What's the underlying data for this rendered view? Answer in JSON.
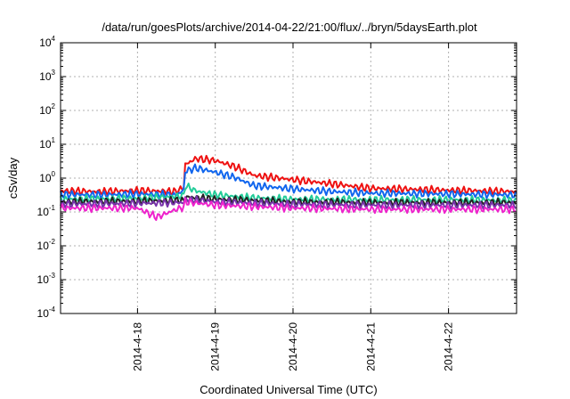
{
  "chart_data": {
    "type": "line",
    "title": "/data/run/goesPlots/archive/2014-04-22/21:00/flux/../bryn/5daysEarth.plot",
    "xlabel": "Coordinated Universal Time (UTC)",
    "ylabel": "cSv/day",
    "yscale": "log",
    "ylim": [
      0.0001,
      10000
    ],
    "xlim": [
      "2014-04-17 00:15",
      "2014-04-22 21:00"
    ],
    "grid": true,
    "legend": "none",
    "x_ticks": [
      {
        "label": "2014-4-18",
        "value": "2014-04-18"
      },
      {
        "label": "2014-4-19",
        "value": "2014-04-19"
      },
      {
        "label": "2014-4-20",
        "value": "2014-04-20"
      },
      {
        "label": "2014-4-21",
        "value": "2014-04-21"
      },
      {
        "label": "2014-4-22",
        "value": "2014-04-22"
      }
    ],
    "y_ticks": [
      {
        "base": "10",
        "exp": "-4",
        "value": 0.0001
      },
      {
        "base": "10",
        "exp": "-3",
        "value": 0.001
      },
      {
        "base": "10",
        "exp": "-2",
        "value": 0.01
      },
      {
        "base": "10",
        "exp": "-1",
        "value": 0.1
      },
      {
        "base": "10",
        "exp": "0",
        "value": 1
      },
      {
        "base": "10",
        "exp": "1",
        "value": 10
      },
      {
        "base": "10",
        "exp": "2",
        "value": 100
      },
      {
        "base": "10",
        "exp": "3",
        "value": 1000
      },
      {
        "base": "10",
        "exp": "4",
        "value": 10000
      }
    ],
    "series": [
      {
        "color": "#ee1111",
        "x": [
          "2014-04-17 00:15",
          "2014-04-17 12:00",
          "2014-04-18 00:00",
          "2014-04-18 12:00",
          "2014-04-18 14:30",
          "2014-04-18 14:45",
          "2014-04-18 18:00",
          "2014-04-19 00:00",
          "2014-04-19 06:00",
          "2014-04-19 12:00",
          "2014-04-20 00:00",
          "2014-04-20 12:00",
          "2014-04-21 00:00",
          "2014-04-21 12:00",
          "2014-04-22 00:00",
          "2014-04-22 21:00"
        ],
        "y": [
          0.42,
          0.4,
          0.43,
          0.4,
          0.55,
          2.5,
          3.8,
          3.3,
          2.2,
          1.2,
          0.9,
          0.68,
          0.5,
          0.47,
          0.44,
          0.4
        ]
      },
      {
        "color": "#1166ee",
        "x": [
          "2014-04-17 00:15",
          "2014-04-17 12:00",
          "2014-04-18 00:00",
          "2014-04-18 12:00",
          "2014-04-18 14:30",
          "2014-04-18 14:45",
          "2014-04-18 18:00",
          "2014-04-19 00:00",
          "2014-04-19 06:00",
          "2014-04-19 12:00",
          "2014-04-20 00:00",
          "2014-04-20 12:00",
          "2014-04-21 00:00",
          "2014-04-21 12:00",
          "2014-04-22 00:00",
          "2014-04-22 21:00"
        ],
        "y": [
          0.33,
          0.32,
          0.34,
          0.32,
          0.45,
          1.6,
          2.0,
          1.5,
          1.05,
          0.6,
          0.48,
          0.4,
          0.36,
          0.35,
          0.34,
          0.32
        ]
      },
      {
        "color": "#22cc99",
        "x": [
          "2014-04-17 00:15",
          "2014-04-18 00:00",
          "2014-04-18 14:30",
          "2014-04-18 14:45",
          "2014-04-18 18:00",
          "2014-04-19 00:00",
          "2014-04-19 12:00",
          "2014-04-20 00:00",
          "2014-04-21 00:00",
          "2014-04-22 00:00",
          "2014-04-22 21:00"
        ],
        "y": [
          0.24,
          0.25,
          0.3,
          0.6,
          0.42,
          0.32,
          0.26,
          0.24,
          0.23,
          0.23,
          0.22
        ]
      },
      {
        "color": "#222222",
        "x": [
          "2014-04-17 00:15",
          "2014-04-18 00:00",
          "2014-04-18 14:30",
          "2014-04-18 14:45",
          "2014-04-19 00:00",
          "2014-04-20 00:00",
          "2014-04-21 00:00",
          "2014-04-22 00:00",
          "2014-04-22 21:00"
        ],
        "y": [
          0.2,
          0.21,
          0.22,
          0.28,
          0.24,
          0.2,
          0.19,
          0.19,
          0.19
        ]
      },
      {
        "color": "#7733aa",
        "x": [
          "2014-04-17 00:15",
          "2014-04-18 00:00",
          "2014-04-18 14:30",
          "2014-04-18 14:45",
          "2014-04-19 00:00",
          "2014-04-20 00:00",
          "2014-04-21 00:00",
          "2014-04-22 00:00",
          "2014-04-22 21:00"
        ],
        "y": [
          0.17,
          0.18,
          0.19,
          0.24,
          0.2,
          0.17,
          0.16,
          0.16,
          0.16
        ]
      },
      {
        "color": "#ee22cc",
        "x": [
          "2014-04-17 00:15",
          "2014-04-18 00:00",
          "2014-04-18 06:00",
          "2014-04-18 12:00",
          "2014-04-18 14:30",
          "2014-04-18 14:45",
          "2014-04-19 00:00",
          "2014-04-20 00:00",
          "2014-04-21 00:00",
          "2014-04-22 00:00",
          "2014-04-22 21:00"
        ],
        "y": [
          0.13,
          0.13,
          0.07,
          0.12,
          0.14,
          0.2,
          0.16,
          0.13,
          0.12,
          0.12,
          0.12
        ]
      }
    ]
  }
}
